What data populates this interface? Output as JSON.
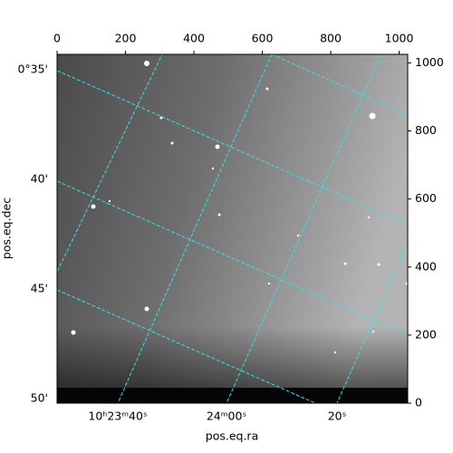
{
  "chart_data": {
    "type": "image",
    "xlim": [
      0,
      1025
    ],
    "xticks": [
      0,
      200,
      400,
      600,
      800,
      1000
    ],
    "ylim": [
      0,
      1025
    ],
    "yticks": [
      0,
      200,
      400,
      600,
      800,
      1000
    ],
    "ra_ticks": [
      "10ʰ23ᵐ40ˢ",
      "24ᵐ00ˢ",
      "20ˢ"
    ],
    "dec_ticks": [
      "0°35'",
      "40'",
      "45'",
      "50'"
    ],
    "xlabel": "pos.eq.ra",
    "ylabel": "pos.eq.dec"
  }
}
